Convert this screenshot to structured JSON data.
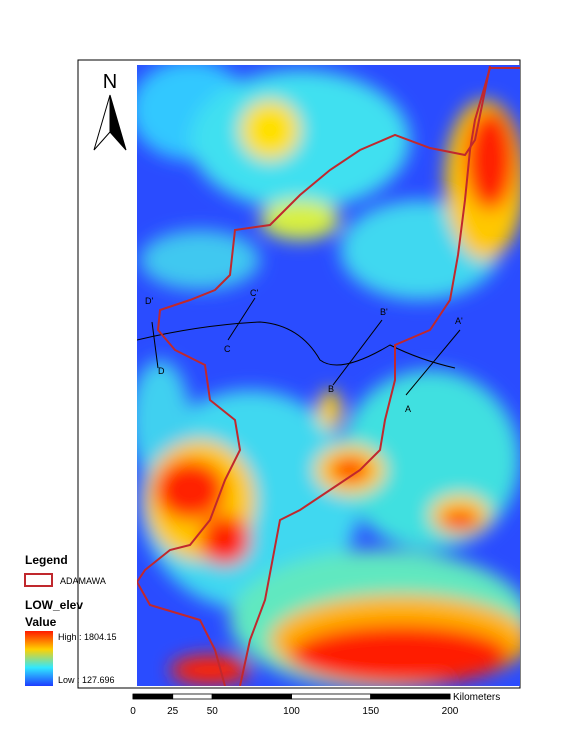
{
  "north_arrow": {
    "label": "N"
  },
  "sections": [
    "A",
    "A'",
    "B",
    "B'",
    "C",
    "C'",
    "D",
    "D'"
  ],
  "legend": {
    "title": "Legend",
    "boundary": {
      "label": "ADAMAWA",
      "color": "#c0282d"
    },
    "raster": {
      "name": "LOW_elev",
      "field": "Value",
      "high_label": "High : 1804.15",
      "low_label": "Low : 127.696",
      "colors": [
        "#ff1a00",
        "#ffd000",
        "#30e8ff",
        "#1e3cff"
      ]
    }
  },
  "scale_bar": {
    "unit": "Kilometers",
    "ticks": [
      0,
      25,
      50,
      100,
      150,
      200
    ]
  }
}
